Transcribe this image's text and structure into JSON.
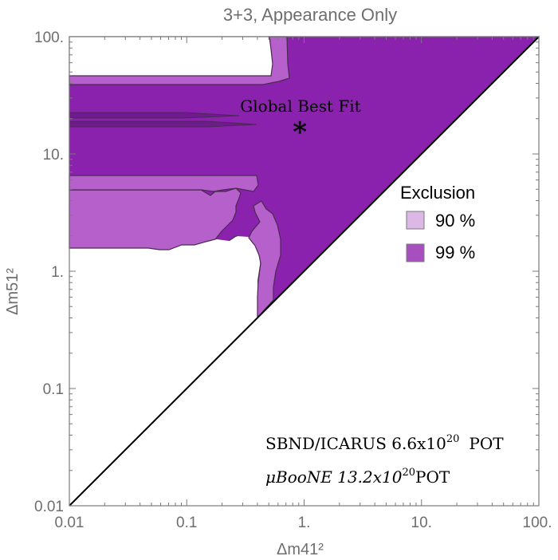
{
  "chart_data": {
    "type": "contour",
    "title": "3+3, Appearance Only",
    "xlabel": "Δm41²",
    "ylabel": "Δm51²",
    "xscale": "log",
    "yscale": "log",
    "xlim": [
      0.01,
      100
    ],
    "ylim": [
      0.01,
      100
    ],
    "x_ticks": [
      "0.01",
      "0.1",
      "1.",
      "10.",
      "100."
    ],
    "y_ticks": [
      "0.01",
      "0.1",
      "1.",
      "10.",
      "100."
    ],
    "legend": {
      "title": "Exclusion",
      "placement": "right",
      "entries": [
        {
          "label": "90 %",
          "color": "#dcb8e6"
        },
        {
          "label": "99 %",
          "color": "#a84fc0"
        }
      ]
    },
    "region_colors": {
      "90": "#b660cc",
      "99": "#8a22ad"
    },
    "annotations": {
      "best_fit_label": "Global Best Fit",
      "best_fit_marker": "*",
      "best_fit_point": {
        "x": 0.92,
        "y": 17
      },
      "experiment_line1_prefix": "SBND/ICARUS 6.6x10",
      "experiment_line1_exp": "20",
      "experiment_line1_suffix": "POT",
      "experiment_line2_prefix": "μBooNE 13.2x10",
      "experiment_line2_exp": "20",
      "experiment_line2_suffix": "POT"
    },
    "diagonal": {
      "from": [
        0.01,
        0.01
      ],
      "to": [
        100,
        100
      ]
    },
    "region_99_outline": [
      [
        0.405,
        0.4
      ],
      [
        0.42,
        3.0
      ],
      [
        0.5,
        4.0
      ],
      [
        0.52,
        5.0
      ],
      [
        0.45,
        6.0
      ],
      [
        0.01,
        6.5
      ],
      [
        0.01,
        14.5
      ],
      [
        0.45,
        17.5
      ],
      [
        0.01,
        22.0
      ],
      [
        0.01,
        45.0
      ],
      [
        0.7,
        45.0
      ],
      [
        0.9,
        60.0
      ],
      [
        1.0,
        100.0
      ],
      [
        100.0,
        100.0
      ]
    ],
    "region_90_lobes": [
      {
        "name": "upper",
        "outline": [
          [
            0.01,
            45
          ],
          [
            0.7,
            45
          ],
          [
            0.75,
            40
          ],
          [
            1.0,
            33
          ],
          [
            0.8,
            30
          ],
          [
            0.01,
            33
          ]
        ]
      },
      {
        "name": "lower",
        "outline": [
          [
            0.01,
            1.55
          ],
          [
            0.23,
            1.6
          ],
          [
            0.3,
            2.0
          ],
          [
            0.38,
            2.7
          ],
          [
            0.45,
            5.0
          ],
          [
            0.38,
            4.9
          ],
          [
            0.01,
            4.9
          ]
        ]
      },
      {
        "name": "right",
        "outline": [
          [
            0.4,
            0.4
          ],
          [
            0.5,
            0.55
          ],
          [
            0.6,
            1.5
          ],
          [
            0.55,
            2.3
          ],
          [
            0.5,
            2.0
          ],
          [
            0.45,
            1.2
          ]
        ]
      }
    ]
  }
}
